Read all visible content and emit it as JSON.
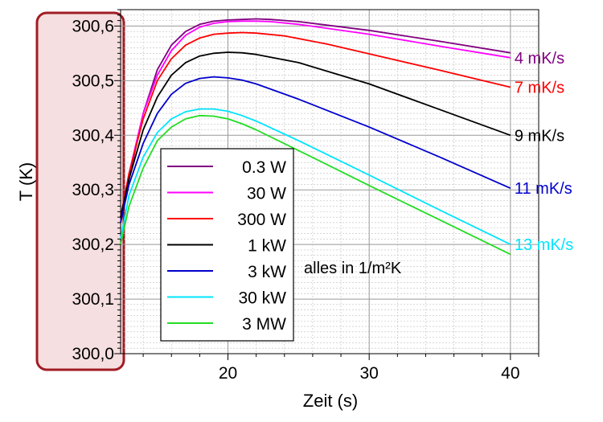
{
  "chart_data": {
    "type": "line",
    "title": "",
    "xlabel": "Zeit (s)",
    "ylabel": "T (K)",
    "xlim": [
      12.4,
      42
    ],
    "ylim": [
      300.0,
      300.63
    ],
    "x_ticks": [
      20,
      30,
      40
    ],
    "x_tick_labels": [
      "20",
      "30",
      "40"
    ],
    "y_ticks": [
      300.0,
      300.1,
      300.2,
      300.3,
      300.4,
      300.5,
      300.6
    ],
    "y_tick_labels": [
      "300,0",
      "300,1",
      "300,2",
      "300,3",
      "300,4",
      "300,5",
      "300,6"
    ],
    "grid": true,
    "legend_position": "lower-left",
    "annotation": "alles in 1/m²K",
    "series": [
      {
        "name": "0.3 W",
        "color": "#800080",
        "end_label": "",
        "points": [
          [
            12.4,
            300.24
          ],
          [
            13,
            300.32
          ],
          [
            14,
            300.44
          ],
          [
            15,
            300.52
          ],
          [
            16,
            300.565
          ],
          [
            17,
            300.59
          ],
          [
            18,
            300.603
          ],
          [
            19,
            300.609
          ],
          [
            20,
            300.611
          ],
          [
            21,
            300.612
          ],
          [
            22,
            300.613
          ],
          [
            23,
            300.612
          ],
          [
            25,
            300.608
          ],
          [
            30,
            300.592
          ],
          [
            35,
            300.572
          ],
          [
            40,
            300.551
          ]
        ]
      },
      {
        "name": "30 W",
        "color": "#ff00ff",
        "end_label": "4 mK/s",
        "end_label_color": "#800080",
        "points": [
          [
            12.4,
            300.25
          ],
          [
            13,
            300.33
          ],
          [
            14,
            300.44
          ],
          [
            15,
            300.51
          ],
          [
            16,
            300.555
          ],
          [
            17,
            300.583
          ],
          [
            18,
            300.598
          ],
          [
            19,
            300.605
          ],
          [
            20,
            300.608
          ],
          [
            21,
            300.609
          ],
          [
            22,
            300.609
          ],
          [
            23,
            300.608
          ],
          [
            25,
            300.603
          ],
          [
            30,
            300.585
          ],
          [
            35,
            300.563
          ],
          [
            40,
            300.542
          ]
        ]
      },
      {
        "name": "300  W",
        "color": "#ff0000",
        "end_label": "7 mK/s",
        "end_label_color": "#ff0000",
        "points": [
          [
            12.4,
            300.25
          ],
          [
            13,
            300.33
          ],
          [
            14,
            300.43
          ],
          [
            15,
            300.5
          ],
          [
            16,
            300.54
          ],
          [
            17,
            300.565
          ],
          [
            18,
            300.578
          ],
          [
            19,
            300.585
          ],
          [
            20,
            300.587
          ],
          [
            21,
            300.588
          ],
          [
            22,
            300.587
          ],
          [
            24,
            300.582
          ],
          [
            27,
            300.567
          ],
          [
            30,
            300.549
          ],
          [
            35,
            300.519
          ],
          [
            40,
            300.488
          ]
        ]
      },
      {
        "name": "1 kW",
        "color": "#000000",
        "end_label": "9 mK/s",
        "end_label_color": "#000000",
        "points": [
          [
            12.4,
            300.25
          ],
          [
            13,
            300.32
          ],
          [
            14,
            300.41
          ],
          [
            15,
            300.47
          ],
          [
            16,
            300.51
          ],
          [
            17,
            300.533
          ],
          [
            18,
            300.545
          ],
          [
            19,
            300.55
          ],
          [
            20,
            300.552
          ],
          [
            21,
            300.551
          ],
          [
            22,
            300.548
          ],
          [
            25,
            300.533
          ],
          [
            30,
            300.494
          ],
          [
            35,
            300.447
          ],
          [
            40,
            300.4
          ]
        ]
      },
      {
        "name": "3 kW",
        "color": "#0000cc",
        "end_label": "11 mK/s",
        "end_label_color": "#0000cc",
        "points": [
          [
            12.4,
            300.24
          ],
          [
            13,
            300.31
          ],
          [
            14,
            300.385
          ],
          [
            15,
            300.44
          ],
          [
            16,
            300.475
          ],
          [
            17,
            300.495
          ],
          [
            18,
            300.504
          ],
          [
            19,
            300.507
          ],
          [
            20,
            300.505
          ],
          [
            21,
            300.501
          ],
          [
            22,
            300.494
          ],
          [
            25,
            300.466
          ],
          [
            30,
            300.415
          ],
          [
            35,
            300.36
          ],
          [
            40,
            300.303
          ]
        ]
      },
      {
        "name": "30 kW",
        "color": "#00e5ff",
        "end_label": "13 mK/s",
        "end_label_color": "#00e5ff",
        "points": [
          [
            12.4,
            300.21
          ],
          [
            13,
            300.29
          ],
          [
            14,
            300.36
          ],
          [
            15,
            300.405
          ],
          [
            16,
            300.43
          ],
          [
            17,
            300.443
          ],
          [
            18,
            300.448
          ],
          [
            19,
            300.448
          ],
          [
            20,
            300.444
          ],
          [
            21,
            300.436
          ],
          [
            22,
            300.426
          ],
          [
            25,
            300.39
          ],
          [
            30,
            300.327
          ],
          [
            35,
            300.263
          ],
          [
            40,
            300.2
          ]
        ]
      },
      {
        "name": "3 MW",
        "color": "#22dd22",
        "end_label": "",
        "points": [
          [
            12.4,
            300.2
          ],
          [
            13,
            300.27
          ],
          [
            14,
            300.34
          ],
          [
            15,
            300.39
          ],
          [
            16,
            300.415
          ],
          [
            17,
            300.43
          ],
          [
            18,
            300.436
          ],
          [
            19,
            300.435
          ],
          [
            20,
            300.43
          ],
          [
            21,
            300.421
          ],
          [
            22,
            300.41
          ],
          [
            25,
            300.372
          ],
          [
            30,
            300.308
          ],
          [
            35,
            300.245
          ],
          [
            40,
            300.182
          ]
        ]
      }
    ]
  },
  "highlight": {
    "border_color": "#a01c24",
    "fill_color": "#f6dfe0"
  }
}
